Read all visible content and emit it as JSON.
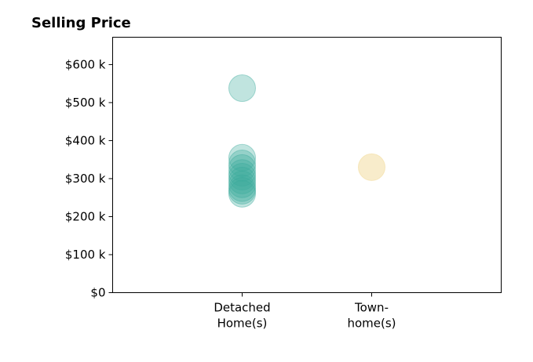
{
  "chart_data": {
    "type": "scatter",
    "title": "Selling Price",
    "xlabel": "",
    "ylabel": "",
    "categories": [
      {
        "lines": [
          "Detached",
          "Home(s)"
        ]
      },
      {
        "lines": [
          "Town-",
          "home(s)"
        ]
      }
    ],
    "x_range": [
      -1,
      2
    ],
    "y_ticks": [
      {
        "value": 0,
        "label": "$0"
      },
      {
        "value": 100000,
        "label": "$100 k"
      },
      {
        "value": 200000,
        "label": "$200 k"
      },
      {
        "value": 300000,
        "label": "$300 k"
      },
      {
        "value": 400000,
        "label": "$400 k"
      },
      {
        "value": 500000,
        "label": "$500 k"
      },
      {
        "value": 600000,
        "label": "$600 k"
      }
    ],
    "ylim": [
      0,
      672000
    ],
    "grid": false,
    "legend": "none",
    "series": [
      {
        "category": 0,
        "color": "#3aaa9a",
        "alpha": 0.32,
        "values": [
          538000,
          355000,
          340000,
          328000,
          315000,
          305000,
          295000,
          285000,
          275000,
          268000,
          260000
        ]
      },
      {
        "category": 1,
        "color": "#f3dfa8",
        "alpha": 0.6,
        "values": [
          330000
        ]
      }
    ]
  }
}
